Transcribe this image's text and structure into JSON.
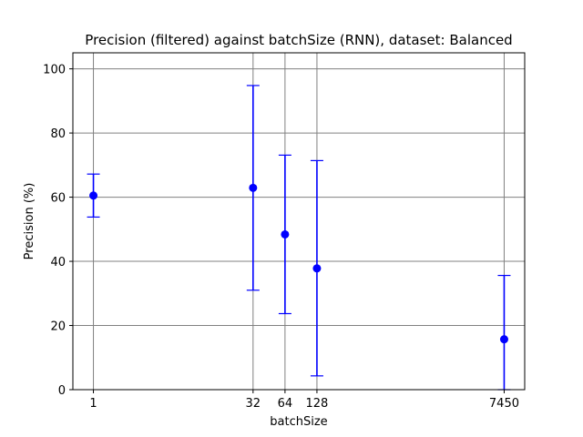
{
  "chart_data": {
    "type": "scatter",
    "title": "Precision (filtered) against batchSize (RNN), dataset: Balanced",
    "xlabel": "batchSize",
    "ylabel": "Precision (%)",
    "x_scale": "log",
    "x_ticks": [
      "1",
      "32",
      "64",
      "128",
      "7450"
    ],
    "y_ticks": [
      "0",
      "20",
      "40",
      "60",
      "80",
      "100"
    ],
    "ylim": [
      0,
      105
    ],
    "grid": true,
    "series_color": "#0000ff",
    "grid_color": "#808080",
    "points": [
      {
        "x": 1,
        "y": 60.5,
        "lower": 53.8,
        "upper": 67.2
      },
      {
        "x": 32,
        "y": 62.9,
        "lower": 31.0,
        "upper": 94.8
      },
      {
        "x": 64,
        "y": 48.4,
        "lower": 23.7,
        "upper": 73.1
      },
      {
        "x": 128,
        "y": 37.8,
        "lower": 4.3,
        "upper": 71.4
      },
      {
        "x": 7450,
        "y": 15.7,
        "lower": 0.0,
        "upper": 35.6
      }
    ]
  }
}
